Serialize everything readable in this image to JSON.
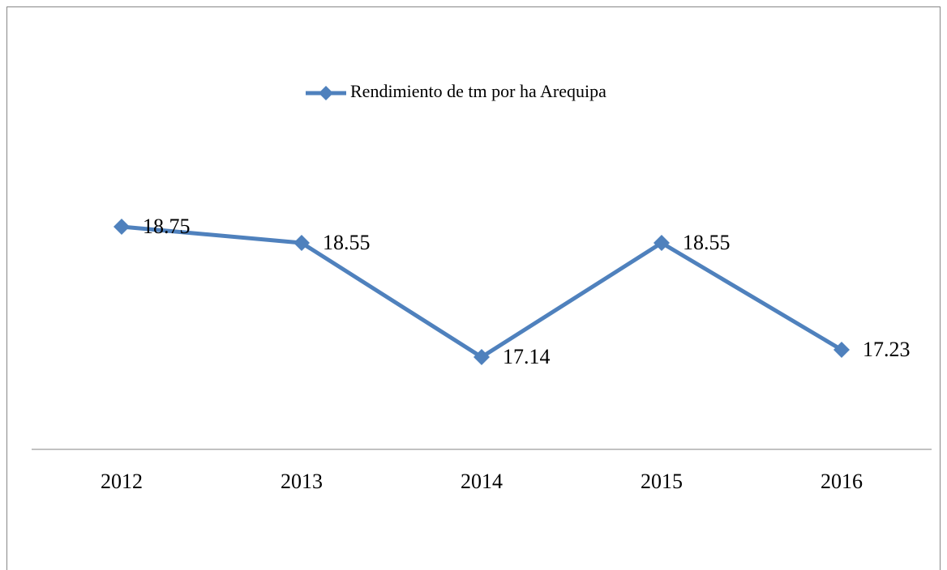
{
  "chart_data": {
    "type": "line",
    "categories": [
      "2012",
      "2013",
      "2014",
      "2015",
      "2016"
    ],
    "series": [
      {
        "name": "Rendimiento de tm por ha Arequipa",
        "color": "#4f81bd",
        "values": [
          18.75,
          18.55,
          17.14,
          18.55,
          17.23
        ]
      }
    ],
    "ylim": [
      16,
      20
    ],
    "legend": "top"
  }
}
